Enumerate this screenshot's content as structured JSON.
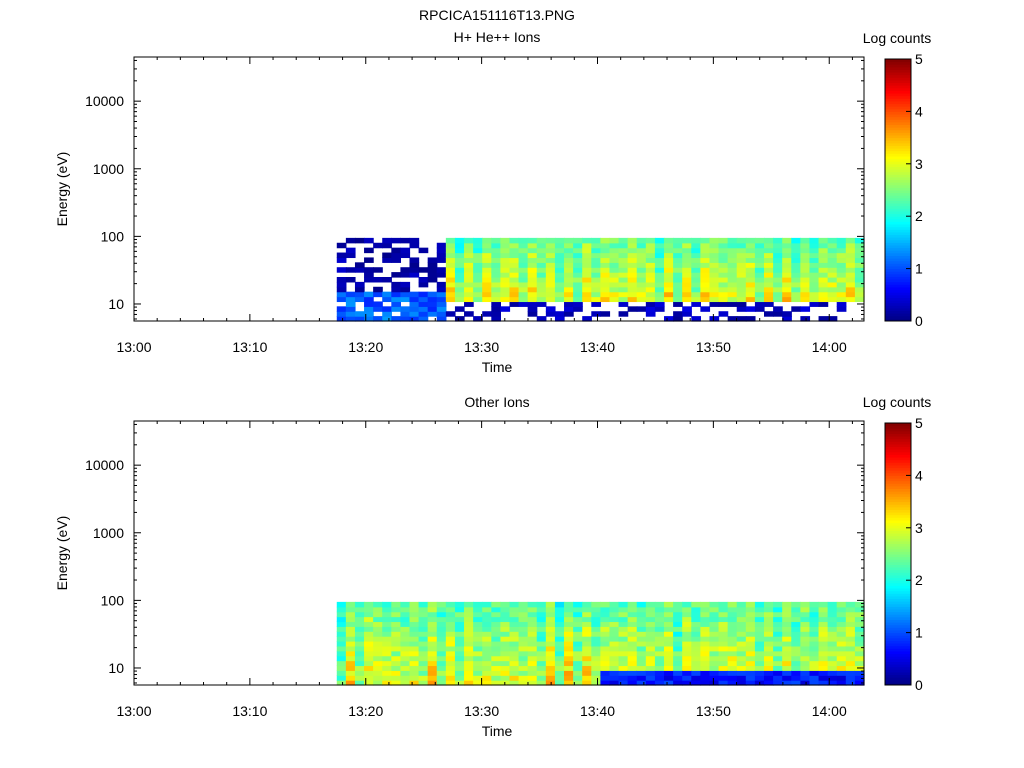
{
  "figure_title": "RPCICA151116T13.PNG",
  "chart_data": [
    {
      "type": "heatmap",
      "title": "H+ He++ Ions",
      "xlabel": "Time",
      "ylabel": "Energy (eV)",
      "x_ticks": [
        "13:00",
        "13:10",
        "13:20",
        "13:30",
        "13:40",
        "13:50",
        "14:00"
      ],
      "y_scale": "log",
      "y_ticks": [
        "10",
        "100",
        "1000",
        "10000"
      ],
      "ylim": [
        5.6,
        45000
      ],
      "xlim_minutes": [
        0,
        63
      ],
      "data_start_minute": 17.5,
      "data_energy_range_ev": [
        5.6,
        95
      ],
      "colorbar": {
        "label": "Log counts",
        "ticks": [
          "0",
          "1",
          "2",
          "3",
          "4",
          "5"
        ],
        "range": [
          0,
          5
        ],
        "colormap": "jet"
      }
    },
    {
      "type": "heatmap",
      "title": "Other Ions",
      "xlabel": "Time",
      "ylabel": "Energy (eV)",
      "x_ticks": [
        "13:00",
        "13:10",
        "13:20",
        "13:30",
        "13:40",
        "13:50",
        "14:00"
      ],
      "y_scale": "log",
      "y_ticks": [
        "10",
        "100",
        "1000",
        "10000"
      ],
      "ylim": [
        5.6,
        45000
      ],
      "xlim_minutes": [
        0,
        63
      ],
      "data_start_minute": 17.5,
      "data_energy_range_ev": [
        5.6,
        95
      ],
      "colorbar": {
        "label": "Log counts",
        "ticks": [
          "0",
          "1",
          "2",
          "3",
          "4",
          "5"
        ],
        "range": [
          0,
          5
        ],
        "colormap": "jet"
      }
    }
  ]
}
